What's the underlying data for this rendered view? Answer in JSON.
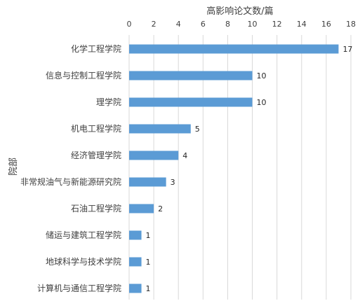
{
  "chart_data": {
    "type": "bar",
    "orientation": "horizontal",
    "xlabel": "高影响论文数/篇",
    "ylabel": "院部",
    "xlim": [
      0,
      18
    ],
    "x_ticks": [
      0,
      2,
      4,
      6,
      8,
      10,
      12,
      14,
      16,
      18
    ],
    "x_axis_position": "top",
    "grid": true,
    "legend": "none",
    "bar_color": "#5b9bd5",
    "categories": [
      "化学工程学院",
      "信息与控制工程学院",
      "理学院",
      "机电工程学院",
      "经济管理学院",
      "非常规油气与新能源研究院",
      "石油工程学院",
      "储运与建筑工程学院",
      "地球科学与技术学院",
      "计算机与通信工程学院"
    ],
    "values": [
      17,
      10,
      10,
      5,
      4,
      3,
      2,
      1,
      1,
      1
    ]
  }
}
